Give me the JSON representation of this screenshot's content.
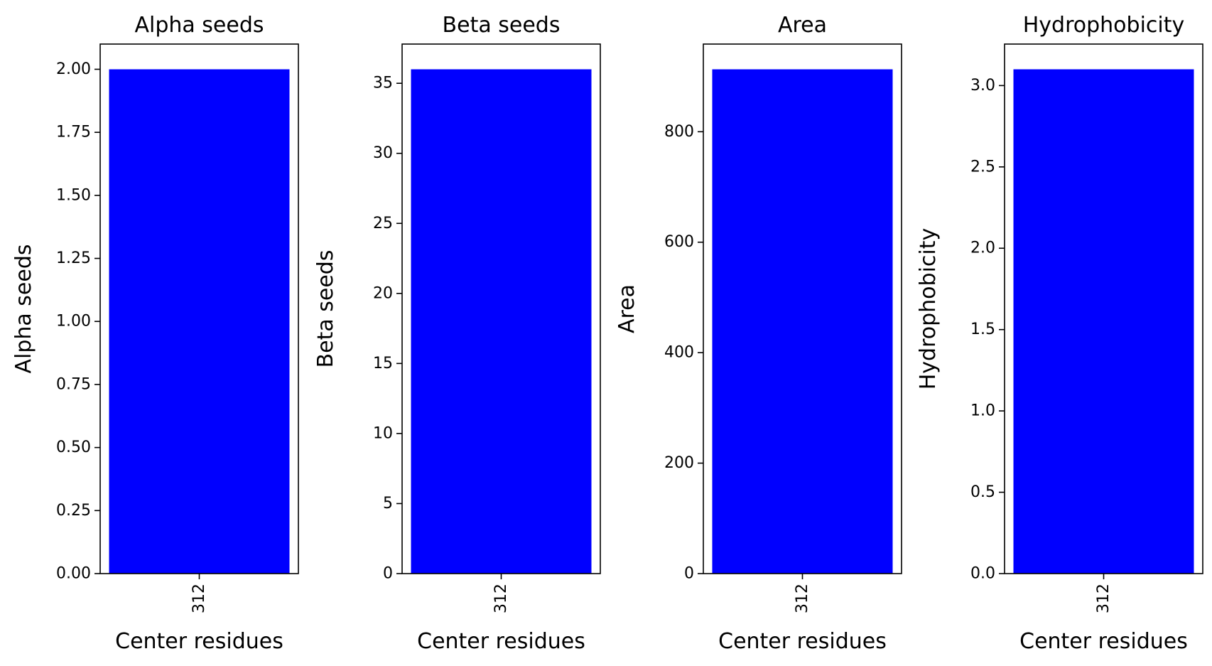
{
  "chart_data": [
    {
      "type": "bar",
      "title": "Alpha seeds",
      "xlabel": "Center residues",
      "ylabel": "Alpha seeds",
      "categories": [
        "312"
      ],
      "values": [
        2.0
      ],
      "ylim": [
        0,
        2.1
      ],
      "yticks": [
        0,
        0.25,
        0.5,
        0.75,
        1.0,
        1.25,
        1.5,
        1.75,
        2.0
      ],
      "ytick_labels": [
        "0.00",
        "0.25",
        "0.50",
        "0.75",
        "1.00",
        "1.25",
        "1.50",
        "1.75",
        "2.00"
      ],
      "bar_color": "#0000ff",
      "grid": false
    },
    {
      "type": "bar",
      "title": "Beta seeds",
      "xlabel": "Center residues",
      "ylabel": "Beta seeds",
      "categories": [
        "312"
      ],
      "values": [
        36
      ],
      "ylim": [
        0,
        37.8
      ],
      "yticks": [
        0,
        5,
        10,
        15,
        20,
        25,
        30,
        35
      ],
      "ytick_labels": [
        "0",
        "5",
        "10",
        "15",
        "20",
        "25",
        "30",
        "35"
      ],
      "bar_color": "#0000ff",
      "grid": false
    },
    {
      "type": "bar",
      "title": "Area",
      "xlabel": "Center residues",
      "ylabel": "Area",
      "categories": [
        "312"
      ],
      "values": [
        913
      ],
      "ylim": [
        0,
        958.7
      ],
      "yticks": [
        0,
        200,
        400,
        600,
        800
      ],
      "ytick_labels": [
        "0",
        "200",
        "400",
        "600",
        "800"
      ],
      "bar_color": "#0000ff",
      "grid": false
    },
    {
      "type": "bar",
      "title": "Hydrophobicity",
      "xlabel": "Center residues",
      "ylabel": "Hydrophobicity",
      "categories": [
        "312"
      ],
      "values": [
        3.1
      ],
      "ylim": [
        0,
        3.255
      ],
      "yticks": [
        0,
        0.5,
        1.0,
        1.5,
        2.0,
        2.5,
        3.0
      ],
      "ytick_labels": [
        "0.0",
        "0.5",
        "1.0",
        "1.5",
        "2.0",
        "2.5",
        "3.0"
      ],
      "bar_color": "#0000ff",
      "grid": false
    }
  ]
}
